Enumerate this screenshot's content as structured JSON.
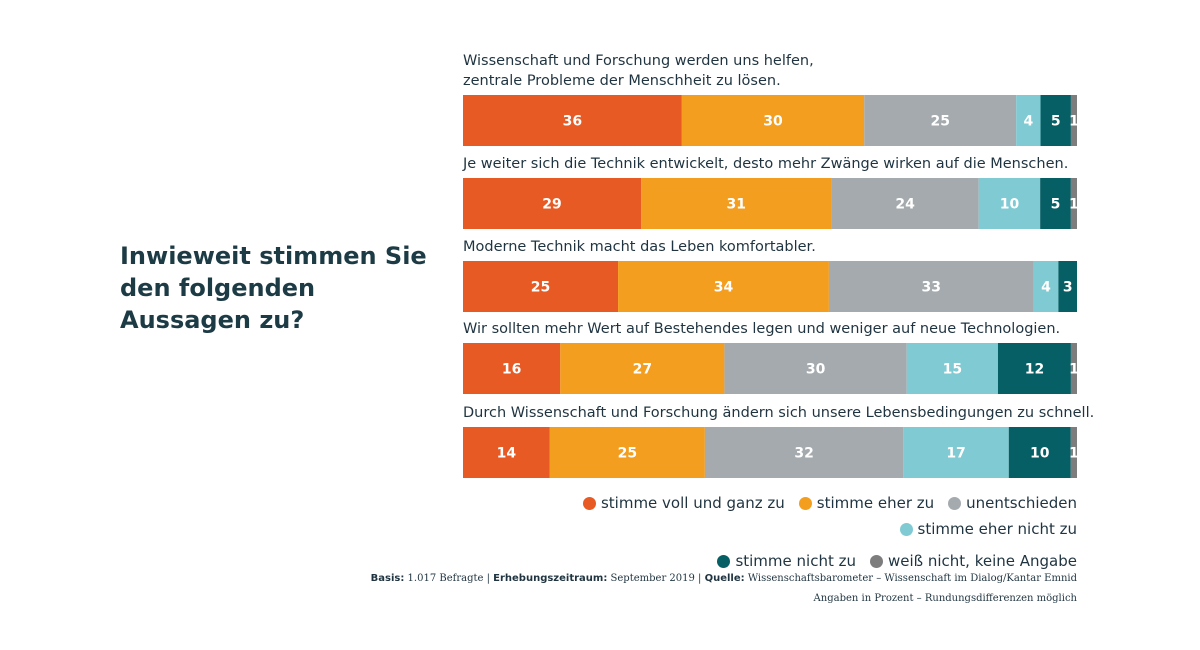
{
  "heading": "Inwieweit stimmen Sie den folgenden Aussagen zu?",
  "chart_data": {
    "type": "bar",
    "orientation": "horizontal",
    "stacked": true,
    "unit": "Prozent",
    "categories": [
      "Wissenschaft und Forschung werden uns helfen, zentrale Probleme der Menschheit zu lösen.",
      "Je weiter sich die Technik entwickelt, desto mehr Zwänge wirken auf die Menschen.",
      "Moderne Technik macht das Leben komfortabler.",
      "Wir sollten mehr Wert auf Bestehendes legen und weniger auf neue Technologien.",
      "Durch Wissenschaft und Forschung ändern sich unsere Lebensbedingungen zu schnell."
    ],
    "category_lines": [
      [
        "Wissenschaft und Forschung werden uns helfen,",
        "zentrale Probleme der Menschheit zu lösen."
      ],
      [
        "Je weiter sich die Technik entwickelt, desto mehr Zwänge wirken auf die Menschen."
      ],
      [
        "Moderne Technik macht das Leben komfortabler."
      ],
      [
        "Wir sollten mehr Wert auf Bestehendes legen und weniger auf neue Technologien."
      ],
      [
        "Durch Wissenschaft und Forschung ändern sich unsere Lebensbedingungen zu schnell."
      ]
    ],
    "series": [
      {
        "name": "stimme voll und ganz zu",
        "color": "#e85a24",
        "values": [
          36,
          29,
          25,
          16,
          14
        ]
      },
      {
        "name": "stimme eher zu",
        "color": "#f39e1f",
        "values": [
          30,
          31,
          34,
          27,
          25
        ]
      },
      {
        "name": "unentschieden",
        "color": "#a4aaae",
        "values": [
          25,
          24,
          33,
          30,
          32
        ]
      },
      {
        "name": "stimme eher nicht zu",
        "color": "#7fcad3",
        "values": [
          4,
          10,
          4,
          15,
          17
        ]
      },
      {
        "name": "stimme nicht zu",
        "color": "#075f66",
        "values": [
          5,
          5,
          3,
          12,
          10
        ]
      },
      {
        "name": "weiß nicht, keine Angabe",
        "color": "#7d7d7d",
        "values": [
          1,
          1,
          0,
          1,
          1
        ]
      }
    ]
  },
  "footer": {
    "line1": [
      {
        "label": "Basis:",
        "text": "1.017 Befragte"
      },
      {
        "label": "Erhebungszeitraum:",
        "text": "September 2019"
      },
      {
        "label": "Quelle:",
        "text": "Wissenschaftsbarometer – Wissenschaft im Dialog/Kantar Emnid"
      }
    ],
    "separator": " | ",
    "line2": "Angaben in Prozent – Rundungsdifferenzen möglich"
  }
}
